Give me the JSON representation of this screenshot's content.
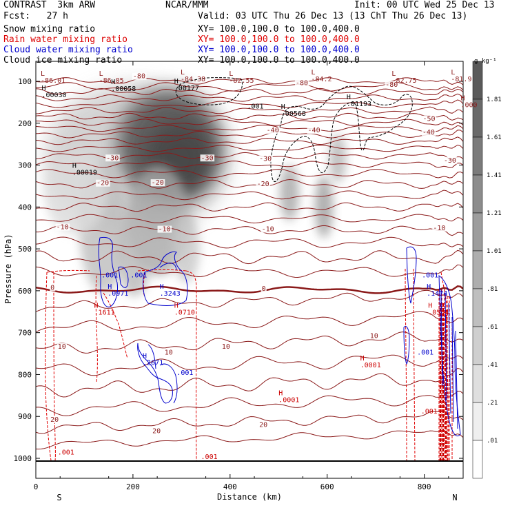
{
  "header": {
    "model": "CONTRAST  3km ARW",
    "org": "NCAR/MMM",
    "init": "Init: 00 UTC Wed 25 Dec 13",
    "fcst": "Fcst:   27 h",
    "valid": "Valid: 03 UTC Thu 26 Dec 13 (13 ChT Thu 26 Dec 13)",
    "fields": [
      {
        "name": "Snow mixing ratio",
        "xy": "XY= 100.0,100.0 to 100.0,400.0",
        "color": "#000000"
      },
      {
        "name": "Rain water mixing ratio",
        "xy": "XY= 100.0,100.0 to 100.0,400.0",
        "color": "#dd0000"
      },
      {
        "name": "Cloud water mixing ratio",
        "xy": "XY= 100.0,100.0 to 100.0,400.0",
        "color": "#0000cc"
      },
      {
        "name": "Cloud ice mixing ratio",
        "xy": "XY= 100.0,100.0 to 100.0,400.0",
        "color": "#000000"
      }
    ]
  },
  "chart_data": {
    "type": "cross-section",
    "xlabel": "Distance (km)",
    "ylabel": "Pressure (hPa)",
    "xlim": [
      0,
      880
    ],
    "ylim": [
      1000,
      50
    ],
    "x_ticks": [
      0,
      200,
      400,
      600,
      800
    ],
    "y_ticks": [
      100,
      200,
      300,
      400,
      500,
      600,
      700,
      800,
      900,
      1000
    ],
    "end_labels": [
      "S",
      "N"
    ],
    "colorbar": {
      "unit": "g kg⁻¹",
      "labels": [
        "1.81",
        "1.61",
        "1.41",
        "1.21",
        "1.01",
        ".81",
        ".61",
        ".41",
        ".21",
        ".01"
      ],
      "fills": [
        "#5a5a5a",
        "#6a6a6a",
        "#7b7b7b",
        "#8c8c8c",
        "#9d9d9d",
        "#aeaeae",
        "#bfbfbf",
        "#cfcfcf",
        "#dfdfdf",
        "#efefef",
        "#ffffff"
      ]
    },
    "temperature_contours": {
      "color": "#8b1a1a",
      "levels": [
        -80,
        -70,
        -60,
        -50,
        -40,
        -30,
        -20,
        -10,
        0,
        10,
        20,
        30
      ],
      "labels": [
        {
          "text": "-80",
          "x": 200,
          "p": 93
        },
        {
          "text": "-80",
          "x": 535,
          "p": 109
        },
        {
          "text": "-80",
          "x": 720,
          "p": 113
        },
        {
          "text": "-50",
          "x": 797,
          "p": 195
        },
        {
          "text": "-40",
          "x": 475,
          "p": 222
        },
        {
          "text": "-40",
          "x": 560,
          "p": 222
        },
        {
          "text": "-40",
          "x": 796,
          "p": 227
        },
        {
          "text": "-30",
          "x": 145,
          "p": 288
        },
        {
          "text": "-30",
          "x": 340,
          "p": 288
        },
        {
          "text": "-30",
          "x": 460,
          "p": 290
        },
        {
          "text": "-30",
          "x": 840,
          "p": 294
        },
        {
          "text": "-20",
          "x": 125,
          "p": 348
        },
        {
          "text": "-20",
          "x": 238,
          "p": 347
        },
        {
          "text": "-20",
          "x": 455,
          "p": 350
        },
        {
          "text": "-10",
          "x": 42,
          "p": 453
        },
        {
          "text": "-10",
          "x": 252,
          "p": 458
        },
        {
          "text": "-10",
          "x": 465,
          "p": 458
        },
        {
          "text": "-10",
          "x": 818,
          "p": 455
        },
        {
          "text": "0",
          "x": 30,
          "p": 598
        },
        {
          "text": "0",
          "x": 465,
          "p": 600
        },
        {
          "text": "10",
          "x": 45,
          "p": 738
        },
        {
          "text": "10",
          "x": 265,
          "p": 752
        },
        {
          "text": "10",
          "x": 383,
          "p": 738
        },
        {
          "text": "10",
          "x": 688,
          "p": 713
        },
        {
          "text": "20",
          "x": 30,
          "p": 913
        },
        {
          "text": "20",
          "x": 240,
          "p": 940
        },
        {
          "text": "20",
          "x": 460,
          "p": 925
        }
      ]
    },
    "maxima_labels": [
      {
        "mark": "H",
        "value": ".00030",
        "x": 12,
        "p": 138,
        "field": "snow"
      },
      {
        "mark": "H",
        "value": ".00058",
        "x": 155,
        "p": 123,
        "field": "snow"
      },
      {
        "mark": "H",
        "value": ".00177",
        "x": 285,
        "p": 121,
        "field": "snow"
      },
      {
        "mark": "H",
        "value": ".00019",
        "x": 75,
        "p": 323,
        "field": "snow"
      },
      {
        "mark": "H",
        "value": ".00568",
        "x": 505,
        "p": 182,
        "field": "ice"
      },
      {
        "mark": "H",
        "value": ".01193",
        "x": 640,
        "p": 159,
        "field": "ice"
      },
      {
        "mark": "H",
        "value": ".0971",
        "x": 148,
        "p": 612,
        "field": "cloud"
      },
      {
        "mark": "H",
        "value": ".3243",
        "x": 255,
        "p": 612,
        "field": "cloud"
      },
      {
        "mark": "H",
        "value": ".1474",
        "x": 805,
        "p": 612,
        "field": "cloud"
      },
      {
        "mark": "H",
        "value": ".2671",
        "x": 220,
        "p": 777,
        "field": "cloud"
      },
      {
        "mark": "H",
        "value": ".1611",
        "x": 120,
        "p": 657,
        "field": "rain"
      },
      {
        "mark": "H",
        "value": ".0710",
        "x": 285,
        "p": 657,
        "field": "rain"
      },
      {
        "mark": "H",
        "value": ".0554",
        "x": 808,
        "p": 657,
        "field": "rain"
      },
      {
        "mark": "H",
        "value": ".0001",
        "x": 668,
        "p": 783,
        "field": "rain"
      },
      {
        "mark": "H",
        "value": ".0001",
        "x": 500,
        "p": 866,
        "field": "rain"
      }
    ],
    "minima_labels": [
      {
        "mark": "L",
        "value": "-86.01",
        "x": 10,
        "p": 103
      },
      {
        "mark": "L",
        "value": "-86.05",
        "x": 130,
        "p": 103
      },
      {
        "mark": "L",
        "value": "-84.38",
        "x": 298,
        "p": 100
      },
      {
        "mark": "L",
        "value": "-82.55",
        "x": 398,
        "p": 103
      },
      {
        "mark": "L",
        "value": "-84.2",
        "x": 567,
        "p": 100
      },
      {
        "mark": "L",
        "value": "-82.75",
        "x": 733,
        "p": 103
      },
      {
        "mark": "L",
        "value": "-81.9",
        "x": 855,
        "p": 100
      },
      {
        "mark": "H",
        "value": ".000",
        "x": 875,
        "p": 162
      }
    ],
    "contour_value_labels": [
      {
        "text": ".001",
        "x": 435,
        "p": 165,
        "field": "ice"
      },
      {
        "text": ".001",
        "x": 135,
        "p": 568,
        "field": "cloud"
      },
      {
        "text": ".001",
        "x": 195,
        "p": 568,
        "field": "cloud"
      },
      {
        "text": ".001",
        "x": 795,
        "p": 568,
        "field": "cloud"
      },
      {
        "text": ".001",
        "x": 785,
        "p": 752,
        "field": "cloud"
      },
      {
        "text": ".001",
        "x": 290,
        "p": 801,
        "field": "cloud"
      },
      {
        "text": ".001",
        "x": 45,
        "p": 991,
        "field": "rain"
      },
      {
        "text": ".001",
        "x": 340,
        "p": 1002,
        "field": "rain"
      },
      {
        "text": ".001",
        "x": 793,
        "p": 893,
        "field": "rain"
      }
    ]
  }
}
